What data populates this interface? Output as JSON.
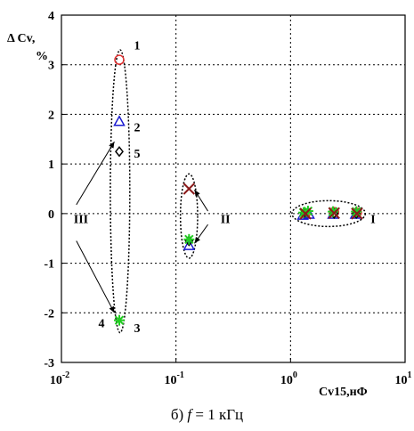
{
  "chart_data": {
    "type": "scatter",
    "xscale": "log",
    "xlim": [
      0.01,
      10
    ],
    "ylim": [
      -3,
      4
    ],
    "yticks": [
      4,
      3,
      2,
      1,
      0,
      -1,
      -2,
      -3
    ],
    "xticks": [
      {
        "value": 0.01,
        "base": "10",
        "exp": "-2"
      },
      {
        "value": 0.1,
        "base": "10",
        "exp": "-1"
      },
      {
        "value": 1,
        "base": "10",
        "exp": "0"
      },
      {
        "value": 10,
        "base": "10",
        "exp": "1"
      }
    ],
    "grid": true,
    "ylabel_line1": "Δ Cv,",
    "ylabel_line2": "%",
    "xlabel": "Cv15,нФ",
    "series": [
      {
        "marker": "circle",
        "color": "#e03030",
        "points": [
          [
            0.032,
            3.1
          ],
          [
            1.35,
            0.0
          ],
          [
            2.4,
            0.03
          ],
          [
            3.8,
            0.02
          ]
        ]
      },
      {
        "marker": "triangle",
        "color": "#1a1ad0",
        "points": [
          [
            0.032,
            1.85
          ],
          [
            0.13,
            -0.65
          ],
          [
            1.28,
            -0.04
          ],
          [
            1.45,
            -0.02
          ],
          [
            2.35,
            -0.02
          ],
          [
            3.7,
            -0.02
          ]
        ]
      },
      {
        "marker": "diamond",
        "color": "#000000",
        "points": [
          [
            0.032,
            1.25
          ],
          [
            0.13,
            -0.55
          ],
          [
            1.32,
            0.02
          ],
          [
            2.4,
            0.0
          ],
          [
            3.75,
            0.0
          ]
        ]
      },
      {
        "marker": "star",
        "color": "#22cc22",
        "points": [
          [
            0.032,
            -2.15
          ],
          [
            0.13,
            -0.52
          ],
          [
            1.3,
            0.02
          ],
          [
            1.42,
            0.05
          ],
          [
            2.35,
            0.04
          ],
          [
            3.75,
            0.04
          ]
        ]
      },
      {
        "marker": "x",
        "color": "#8b1a1a",
        "points": [
          [
            0.13,
            0.5
          ],
          [
            1.35,
            0.0
          ],
          [
            2.4,
            0.01
          ],
          [
            3.8,
            0.0
          ]
        ]
      }
    ],
    "annotations": [
      {
        "text": "1",
        "x": 0.043,
        "y": 3.4
      },
      {
        "text": "2",
        "x": 0.043,
        "y": 1.75
      },
      {
        "text": "5",
        "x": 0.043,
        "y": 1.22
      },
      {
        "text": "3",
        "x": 0.043,
        "y": -2.3
      },
      {
        "text": "4",
        "x": 0.021,
        "y": -2.2
      },
      {
        "text": "III",
        "x": 0.0128,
        "y": -0.1
      },
      {
        "text": "II",
        "x": 0.245,
        "y": -0.1
      },
      {
        "text": "I",
        "x": 5.0,
        "y": -0.1
      }
    ],
    "ellipses": [
      {
        "cx": 0.0325,
        "cy": 0.45,
        "rx_log": 0.085,
        "ry": 2.85
      },
      {
        "cx": 0.13,
        "cy": -0.05,
        "rx_log": 0.075,
        "ry": 0.85
      },
      {
        "cx": 2.15,
        "cy": 0.0,
        "rx_log": 0.32,
        "ry": 0.26
      }
    ],
    "arrows": [
      {
        "from": [
          0.0135,
          0.18
        ],
        "to": [
          0.029,
          1.45
        ]
      },
      {
        "from": [
          0.0135,
          -0.55
        ],
        "to": [
          0.029,
          -2.0
        ]
      },
      {
        "from": [
          0.19,
          0.05
        ],
        "to": [
          0.145,
          0.48
        ]
      },
      {
        "from": [
          0.19,
          -0.22
        ],
        "to": [
          0.145,
          -0.6
        ]
      }
    ]
  },
  "caption": {
    "prefix": "б) ",
    "var": "f",
    "rest": " = 1 кГц"
  }
}
